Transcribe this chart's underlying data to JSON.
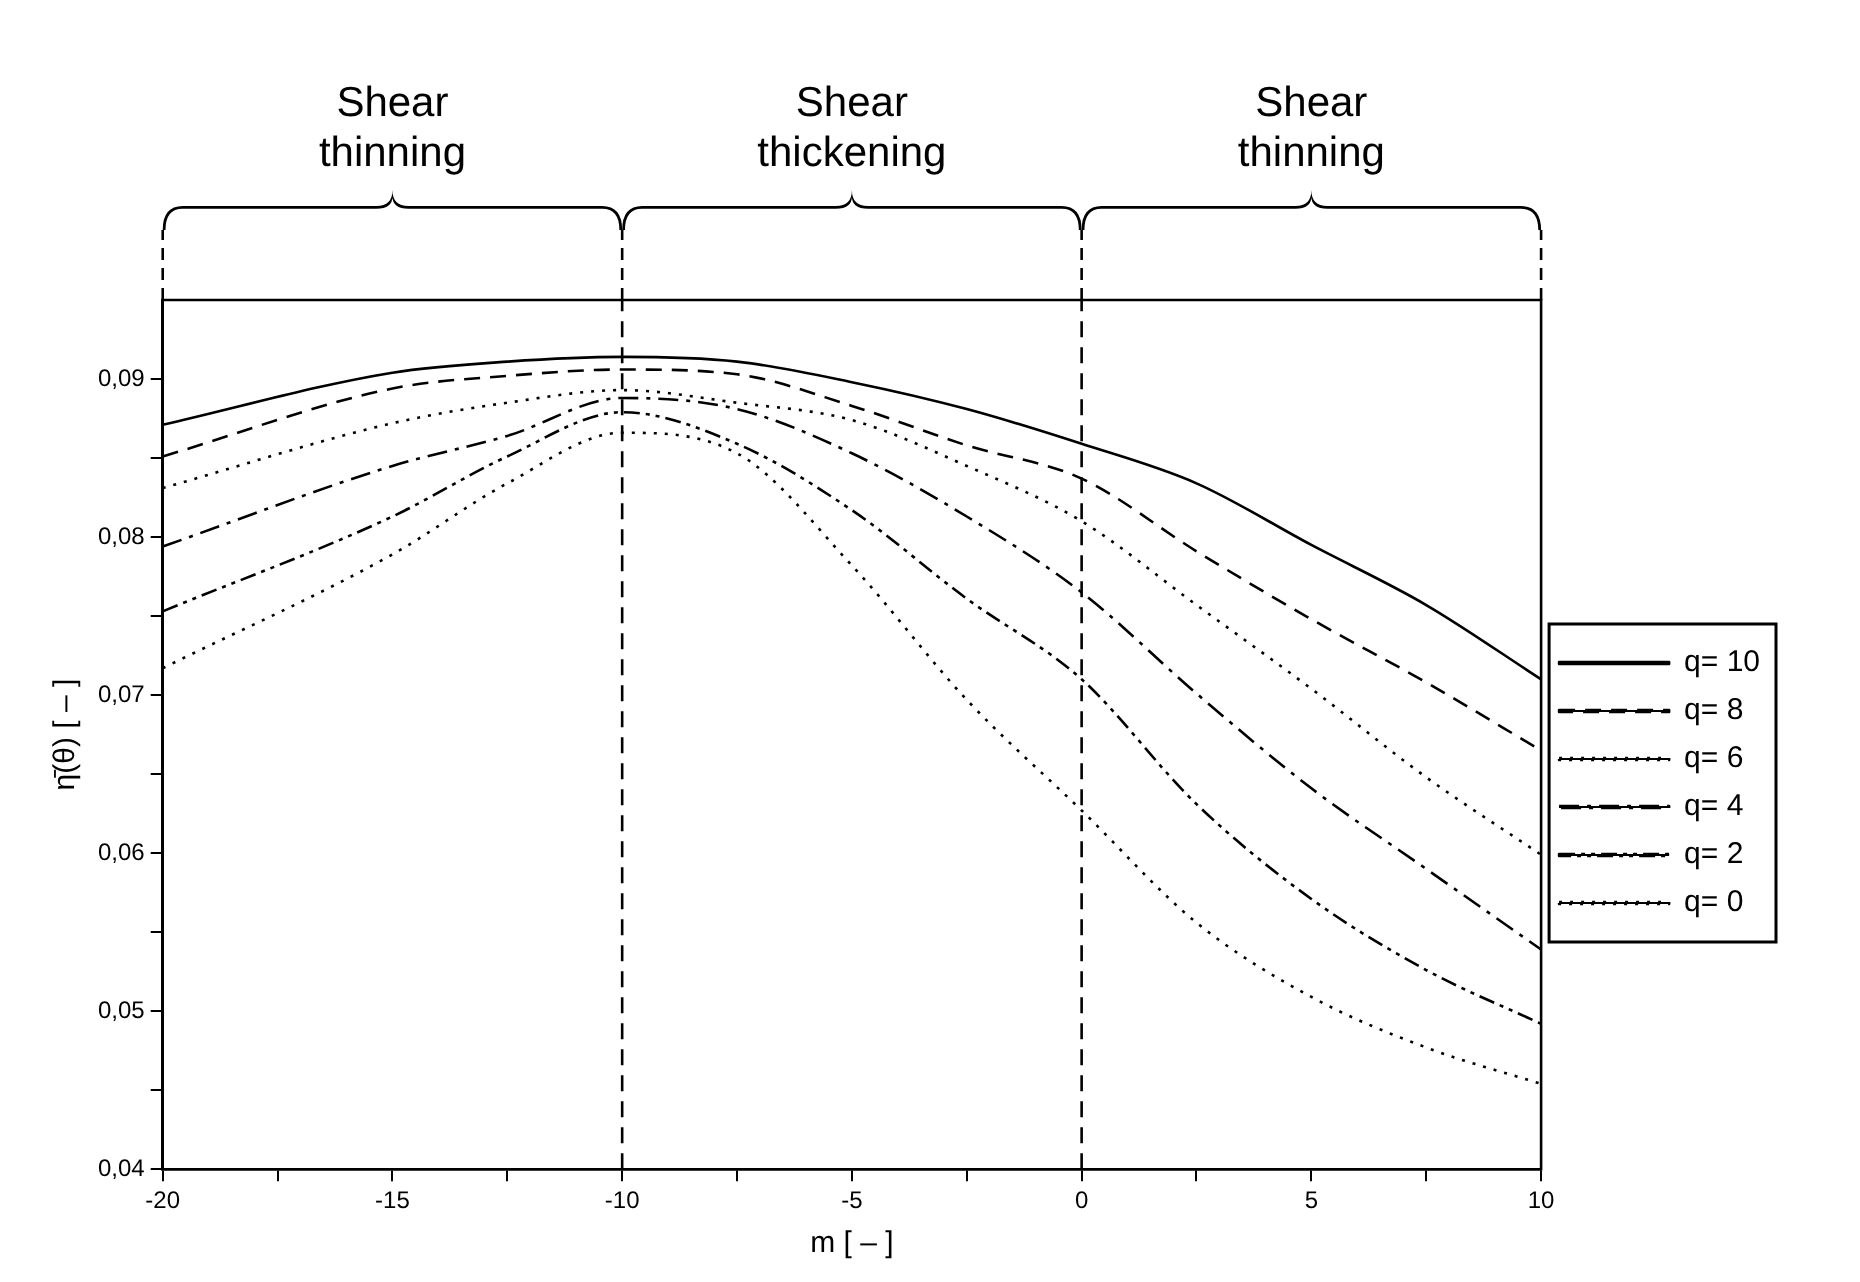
{
  "chart_data": {
    "type": "line",
    "xlabel": "m [ – ]",
    "ylabel": "η̄(θ) [ – ]",
    "annotations": [
      "Shear thinning",
      "Shear thickening",
      "Shear thinning"
    ],
    "x": [
      -20,
      -15,
      -12.5,
      -10,
      -7.5,
      -5,
      -2.5,
      0,
      2.5,
      5,
      7.5,
      10
    ],
    "series": [
      {
        "name": "q= 10",
        "color": "#000000",
        "line_style": "solid",
        "values": [
          0.0871,
          0.0904,
          0.0911,
          0.0914,
          0.0911,
          0.0898,
          0.0881,
          0.0859,
          0.0834,
          0.0795,
          0.0757,
          0.071
        ]
      },
      {
        "name": "q= 8",
        "color": "#000000",
        "line_style": "dashed",
        "values": [
          0.0851,
          0.0894,
          0.0902,
          0.0906,
          0.0903,
          0.0883,
          0.0858,
          0.0837,
          0.0791,
          0.0748,
          0.0708,
          0.0665
        ]
      },
      {
        "name": "q= 6",
        "color": "#000000",
        "line_style": "dotted",
        "values": [
          0.0831,
          0.0872,
          0.0885,
          0.0893,
          0.0885,
          0.0874,
          0.0845,
          0.081,
          0.0757,
          0.0704,
          0.0648,
          0.0599
        ]
      },
      {
        "name": "q= 4",
        "color": "#000000",
        "line_style": "dashdot",
        "values": [
          0.0794,
          0.0845,
          0.0864,
          0.0888,
          0.0881,
          0.0853,
          0.0813,
          0.0765,
          0.0701,
          0.0641,
          0.059,
          0.0539
        ]
      },
      {
        "name": "q= 2",
        "color": "#000000",
        "line_style": "dashdotdot",
        "values": [
          0.0753,
          0.0813,
          0.0851,
          0.0879,
          0.0859,
          0.0817,
          0.0761,
          0.071,
          0.0631,
          0.0571,
          0.0526,
          0.0492
        ]
      },
      {
        "name": "q= 0",
        "color": "#000000",
        "line_style": "dotted",
        "values": [
          0.0717,
          0.0789,
          0.0834,
          0.0866,
          0.0853,
          0.0782,
          0.0697,
          0.0627,
          0.0556,
          0.0509,
          0.0477,
          0.0454
        ]
      }
    ],
    "xlim": [
      -20,
      10
    ],
    "xticks": [
      -20,
      {
        "value": -17.5,
        "label": null
      },
      -15,
      {
        "value": -12.5,
        "label": null
      },
      -10,
      {
        "value": -7.5,
        "label": null
      },
      -5,
      {
        "value": -2.5,
        "label": null
      },
      0,
      {
        "value": 2.5,
        "label": null
      },
      5,
      {
        "value": 7.5,
        "label": null
      },
      10
    ],
    "ylim": [
      0.04,
      0.095
    ],
    "yticks": [
      {
        "value": 0.04,
        "label": "0,04"
      },
      {
        "value": 0.045,
        "label": null
      },
      {
        "value": 0.05,
        "label": "0,05"
      },
      {
        "value": 0.055,
        "label": null
      },
      {
        "value": 0.06,
        "label": "0,06"
      },
      {
        "value": 0.065,
        "label": null
      },
      {
        "value": 0.07,
        "label": "0,07"
      },
      {
        "value": 0.075,
        "label": null
      },
      {
        "value": 0.08,
        "label": "0,08"
      },
      {
        "value": 0.085,
        "label": null
      },
      {
        "value": 0.09,
        "label": "0,09"
      }
    ],
    "ref_lines": [
      {
        "axis": "x",
        "value": -10,
        "color": "#000000",
        "line_style": "dashed"
      },
      {
        "axis": "x",
        "value": 0,
        "color": "#000000",
        "line_style": "dashed"
      }
    ],
    "grid": false,
    "legend": "right",
    "marker": "none"
  }
}
